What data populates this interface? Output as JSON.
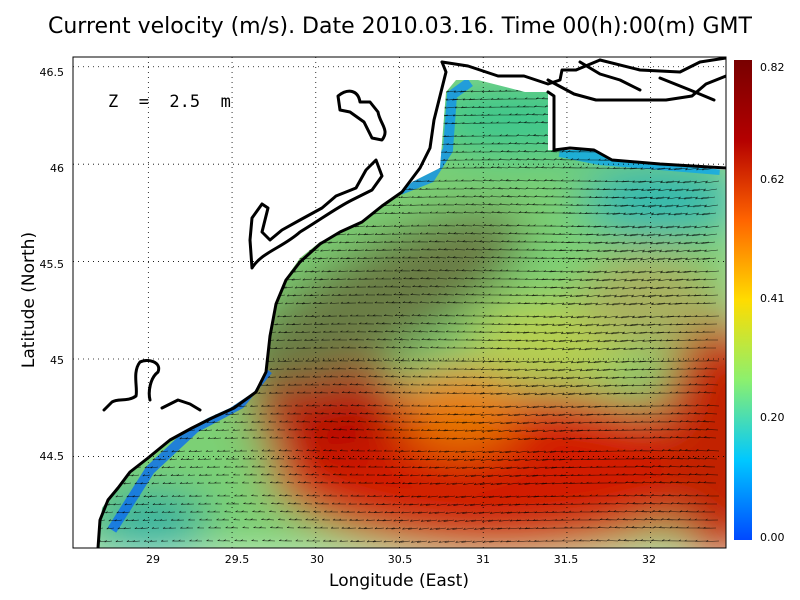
{
  "title": "Current velocity (m/s). Date 2010.03.16. Time 00(h):00(m) GMT",
  "depth_label": "Z  =  2.5  m",
  "chart_data": {
    "type": "heatmap",
    "quantity": "Current velocity (m/s)",
    "xlabel": "Longitude (East)",
    "ylabel": "Latitude (North)",
    "xlim": [
      28.55,
      32.45
    ],
    "ylim": [
      44.03,
      46.55
    ],
    "x_ticks": [
      "29",
      "29.5",
      "30",
      "30.5",
      "31",
      "31.5",
      "32"
    ],
    "y_ticks": [
      "44.5",
      "45",
      "45.5",
      "46",
      "46.5"
    ],
    "colorbar": {
      "min": 0.0,
      "max": 0.82,
      "tick_labels": [
        "0.00",
        "0.20",
        "0.41",
        "0.62",
        "0.82"
      ],
      "tick_values": [
        0.0,
        0.205,
        0.41,
        0.615,
        0.82
      ],
      "colors": [
        "#0048ff",
        "#00c8ff",
        "#8cf06e",
        "#ffdc00",
        "#ff6400",
        "#b40000",
        "#780000"
      ]
    },
    "grid": true,
    "vectors": "black arrows, predominantly southwestward, stronger offshore",
    "speed_maxima": [
      {
        "lon": 31.0,
        "lat": 44.5,
        "speed": 0.72
      },
      {
        "lon": 30.0,
        "lat": 44.75,
        "speed": 0.65
      },
      {
        "lon": 30.6,
        "lat": 44.72,
        "speed": 0.62
      },
      {
        "lon": 32.4,
        "lat": 44.4,
        "speed": 0.78
      }
    ]
  }
}
